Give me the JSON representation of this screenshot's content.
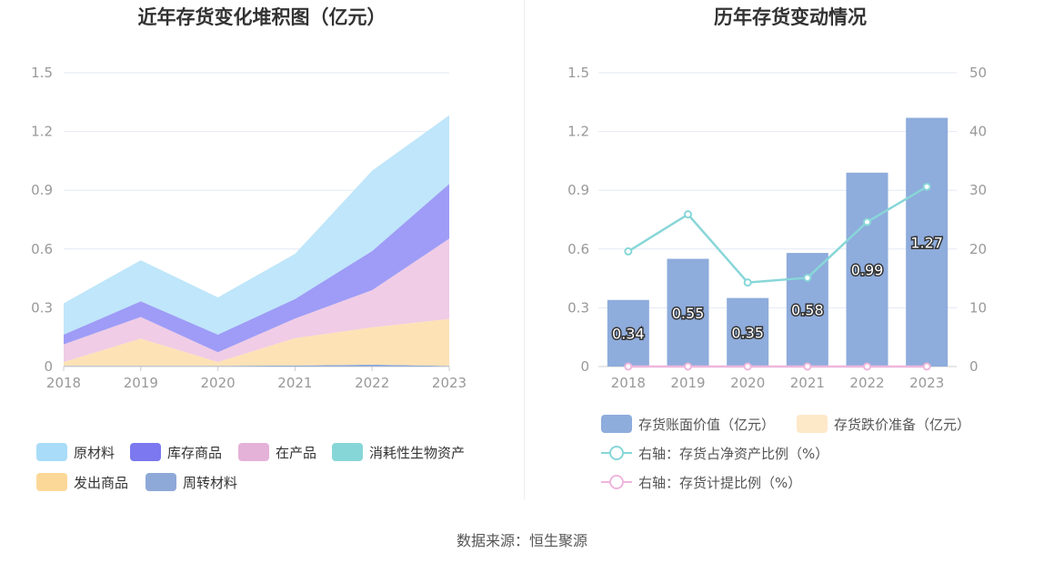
{
  "source_label": "数据来源：恒生聚源",
  "colors": {
    "axis_label": "#999999",
    "grid": "#e4e8f4",
    "title": "#333333",
    "legend_text": "#333333"
  },
  "chart_data": [
    {
      "type": "area",
      "title": "近年存货变化堆积图（亿元）",
      "categories": [
        "2018",
        "2019",
        "2020",
        "2021",
        "2022",
        "2023"
      ],
      "y_ticks": [
        "0",
        "0.3",
        "0.6",
        "0.9",
        "1.2",
        "1.5"
      ],
      "ylim": [
        0,
        1.5
      ],
      "stacked": true,
      "grid": true,
      "legend_position": "bottom",
      "series": [
        {
          "name": "原材料",
          "color": "#bfe6fa",
          "legend_color": "#a8dcf8",
          "values": [
            0.16,
            0.21,
            0.19,
            0.23,
            0.41,
            0.35
          ]
        },
        {
          "name": "库存商品",
          "color": "#9e9cf6",
          "legend_color": "#7b78f0",
          "values": [
            0.05,
            0.08,
            0.09,
            0.1,
            0.2,
            0.28
          ]
        },
        {
          "name": "在产品",
          "color": "#f0cce6",
          "legend_color": "#e4b2d8",
          "values": [
            0.09,
            0.11,
            0.05,
            0.1,
            0.19,
            0.41
          ]
        },
        {
          "name": "消耗性生物资产",
          "color": "#8ad8d8",
          "legend_color": "#86d6d8",
          "values": [
            0,
            0,
            0,
            0,
            0,
            0
          ]
        },
        {
          "name": "发出商品",
          "color": "#fde2b6",
          "legend_color": "#fcd898",
          "values": [
            0.02,
            0.14,
            0.02,
            0.14,
            0.19,
            0.24
          ]
        },
        {
          "name": "周转材料",
          "color": "#8faad8",
          "legend_color": "#8ea9d8",
          "values": [
            0.003,
            0.003,
            0.003,
            0.005,
            0.01,
            0.003
          ]
        }
      ]
    },
    {
      "type": "bar",
      "title": "历年存货变动情况",
      "categories": [
        "2018",
        "2019",
        "2020",
        "2021",
        "2022",
        "2023"
      ],
      "y_ticks": [
        "0",
        "0.3",
        "0.6",
        "0.9",
        "1.2",
        "1.5"
      ],
      "y2_ticks": [
        "0",
        "10",
        "20",
        "30",
        "40",
        "50"
      ],
      "ylim": [
        0,
        1.5
      ],
      "y2lim": [
        0,
        50
      ],
      "grid": true,
      "legend_position": "bottom",
      "series": [
        {
          "name": "存货账面价值（亿元）",
          "kind": "bar",
          "color": "#8eacdc",
          "values": [
            0.34,
            0.55,
            0.35,
            0.58,
            0.99,
            1.27
          ],
          "labels": [
            "0.34",
            "0.55",
            "0.35",
            "0.58",
            "0.99",
            "1.27"
          ]
        },
        {
          "name": "存货跌价准备（亿元）",
          "kind": "bar",
          "color": "#fde8c8",
          "values": [
            0,
            0,
            0,
            0,
            0,
            0
          ]
        },
        {
          "name": "右轴：存货占净资产比例（%）",
          "kind": "line",
          "axis": "right",
          "color": "#88d6d8",
          "values": [
            19.6,
            25.9,
            14.3,
            15.1,
            24.6,
            30.6
          ]
        },
        {
          "name": "右轴：存货计提比例（%）",
          "kind": "line",
          "axis": "right",
          "color": "#eeb6dc",
          "values": [
            0,
            0,
            0,
            0,
            0,
            0
          ]
        }
      ]
    }
  ]
}
